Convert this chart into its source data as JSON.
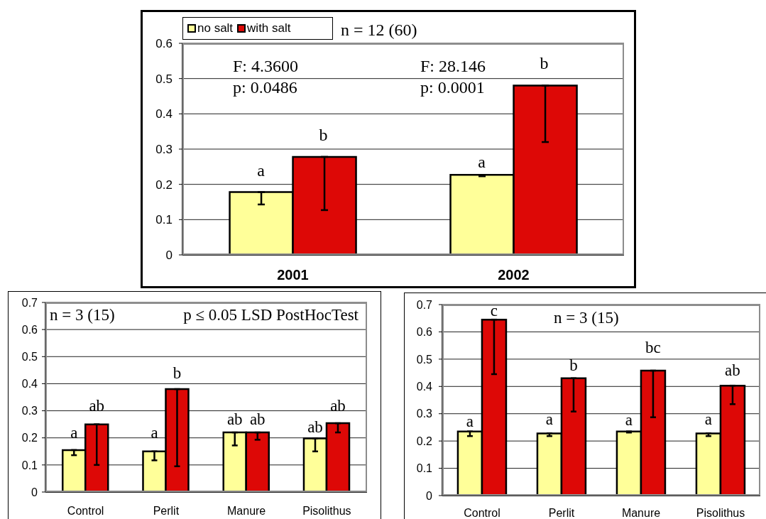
{
  "chart_data": [
    {
      "type": "bar",
      "categories": [
        "2001",
        "2002"
      ],
      "series": [
        {
          "name": "no salt",
          "color": "#ffff99",
          "values": [
            0.178,
            0.227
          ],
          "errors": [
            [
              0.143,
              0.178
            ],
            [
              0.223,
              0.227
            ]
          ],
          "value_labels": [
            "a",
            "a"
          ]
        },
        {
          "name": "with salt",
          "color": "#dd0806",
          "values": [
            0.278,
            0.48
          ],
          "errors": [
            [
              0.127,
              0.278
            ],
            [
              0.32,
              0.48
            ]
          ],
          "value_labels": [
            "b",
            "b"
          ]
        }
      ],
      "ylim": [
        0,
        0.6
      ],
      "yticks": [
        0,
        0.1,
        0.2,
        0.3,
        0.4,
        0.5,
        0.6
      ],
      "grid": "y",
      "legend": "top left",
      "annotations": [
        "n = 12 (60)",
        "F: 4.3600",
        "p: 0.0486",
        "F: 28.146",
        "p: 0.0001"
      ]
    },
    {
      "type": "bar",
      "categories": [
        "Control",
        "Perlit",
        "Manure",
        "Pisolithus"
      ],
      "series": [
        {
          "color": "#ffff99",
          "values": [
            0.155,
            0.15,
            0.22,
            0.198
          ],
          "errors": [
            [
              0.136,
              0.155
            ],
            [
              0.117,
              0.15
            ],
            [
              0.172,
              0.22
            ],
            [
              0.15,
              0.198
            ]
          ],
          "value_labels": [
            "a",
            "a",
            "ab",
            "ab"
          ]
        },
        {
          "color": "#dd0806",
          "values": [
            0.25,
            0.38,
            0.22,
            0.254
          ],
          "errors": [
            [
              0.1,
              0.25
            ],
            [
              0.095,
              0.38
            ],
            [
              0.193,
              0.22
            ],
            [
              0.22,
              0.254
            ]
          ],
          "value_labels": [
            "ab",
            "b",
            "ab",
            "ab"
          ]
        }
      ],
      "ylim": [
        0,
        0.7
      ],
      "yticks": [
        0,
        0.1,
        0.2,
        0.3,
        0.4,
        0.5,
        0.6,
        0.7
      ],
      "grid": "y",
      "annotations": [
        "n = 3 (15)",
        "p ≤ 0.05 LSD PostHocTest"
      ]
    },
    {
      "type": "bar",
      "categories": [
        "Control",
        "Perlit",
        "Manure",
        "Pisolithus"
      ],
      "series": [
        {
          "color": "#ffff99",
          "values": [
            0.235,
            0.228,
            0.235,
            0.228
          ],
          "errors": [
            [
              0.218,
              0.235
            ],
            [
              0.218,
              0.228
            ],
            [
              0.231,
              0.235
            ],
            [
              0.218,
              0.228
            ]
          ],
          "value_labels": [
            "a",
            "a",
            "a",
            "a"
          ]
        },
        {
          "color": "#dd0806",
          "values": [
            0.645,
            0.43,
            0.458,
            0.403
          ],
          "errors": [
            [
              0.445,
              0.645
            ],
            [
              0.308,
              0.43
            ],
            [
              0.287,
              0.458
            ],
            [
              0.335,
              0.403
            ]
          ],
          "value_labels": [
            "c",
            "b",
            "bc",
            "ab"
          ]
        }
      ],
      "ylim": [
        0,
        0.7
      ],
      "yticks": [
        0,
        0.1,
        0.2,
        0.3,
        0.4,
        0.5,
        0.6,
        0.7
      ],
      "grid": "y",
      "annotations": [
        "n = 3 (15)"
      ]
    }
  ]
}
